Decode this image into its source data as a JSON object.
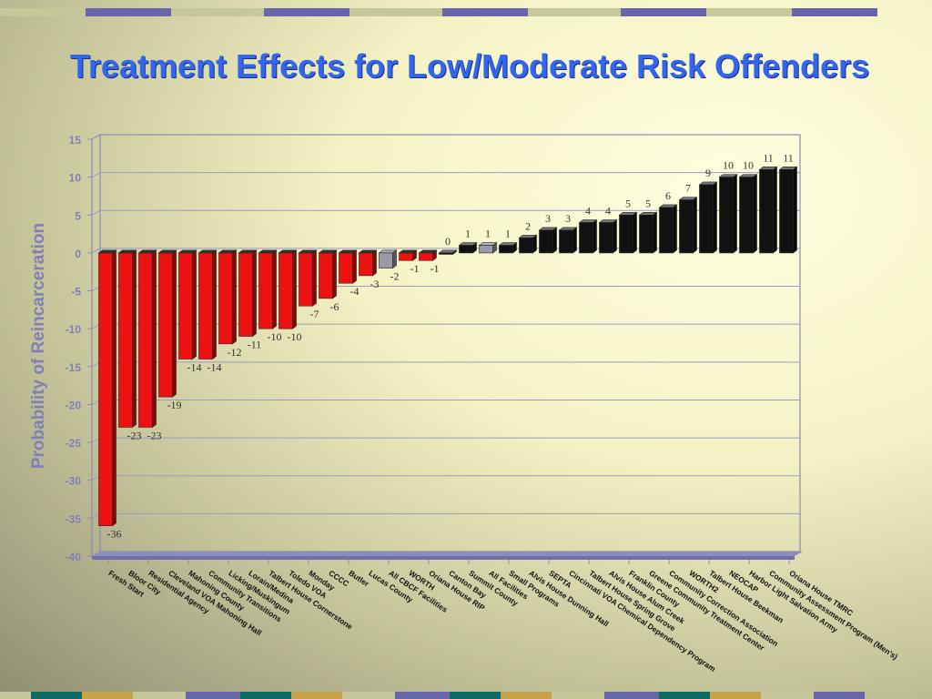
{
  "slide": {
    "accent_colors": [
      "#c6c79b",
      "#6666a8",
      "#0e6b63",
      "#c8a24a"
    ]
  },
  "chart_data": {
    "type": "bar",
    "title": "Treatment Effects for Low/Moderate Risk Offenders",
    "xlabel": "",
    "ylabel": "Probability of Reincarceration",
    "ylim": [
      -40,
      15
    ],
    "yticks": [
      15,
      10,
      5,
      0,
      -5,
      -10,
      -15,
      -20,
      -25,
      -30,
      -35,
      -40
    ],
    "grid": true,
    "categories": [
      "Fresh Start",
      "Bloor City",
      "Residential Agency",
      "Cleveland VOA Mahoning Hall",
      "Mahoning County",
      "Community Transitions",
      "Licking/Muskingum",
      "Lorain/Medina",
      "Talbert House Cornerstone",
      "Toledo VOA",
      "Monday",
      "CCCC",
      "Butler",
      "Lucas County",
      "All CBCF Facilities",
      "WORTH",
      "Oriana House RIP",
      "Canton Bay",
      "Summit County",
      "All Facilities",
      "Small Programs",
      "Alvis House Dunning Hall",
      "SEPTA",
      "Cincinnati VOA Chemical Dependency Program",
      "Talbert House Spring Grove",
      "Alvis House Alum Creek",
      "Franklin County",
      "Greene Community Treatment Center",
      "Community Correction Association",
      "WORTH2",
      "Talbert House Beekman",
      "NEOCAP",
      "Harbor Light Salvation Army",
      "Community Assessment Program (Men's)",
      "Oriana House TMRC"
    ],
    "values": [
      -36,
      -23,
      -23,
      -19,
      -14,
      -14,
      -12,
      -11,
      -10,
      -10,
      -7,
      -6,
      -4,
      -3,
      -2,
      -1,
      -1,
      0,
      1,
      1,
      1,
      2,
      3,
      3,
      4,
      4,
      5,
      5,
      6,
      7,
      9,
      10,
      10,
      11,
      11
    ],
    "colors": {
      "negative": "#ee1111",
      "positive": "#111111",
      "aggregate": "#9a9aa8",
      "aggregate_indices": [
        14,
        19
      ]
    }
  }
}
